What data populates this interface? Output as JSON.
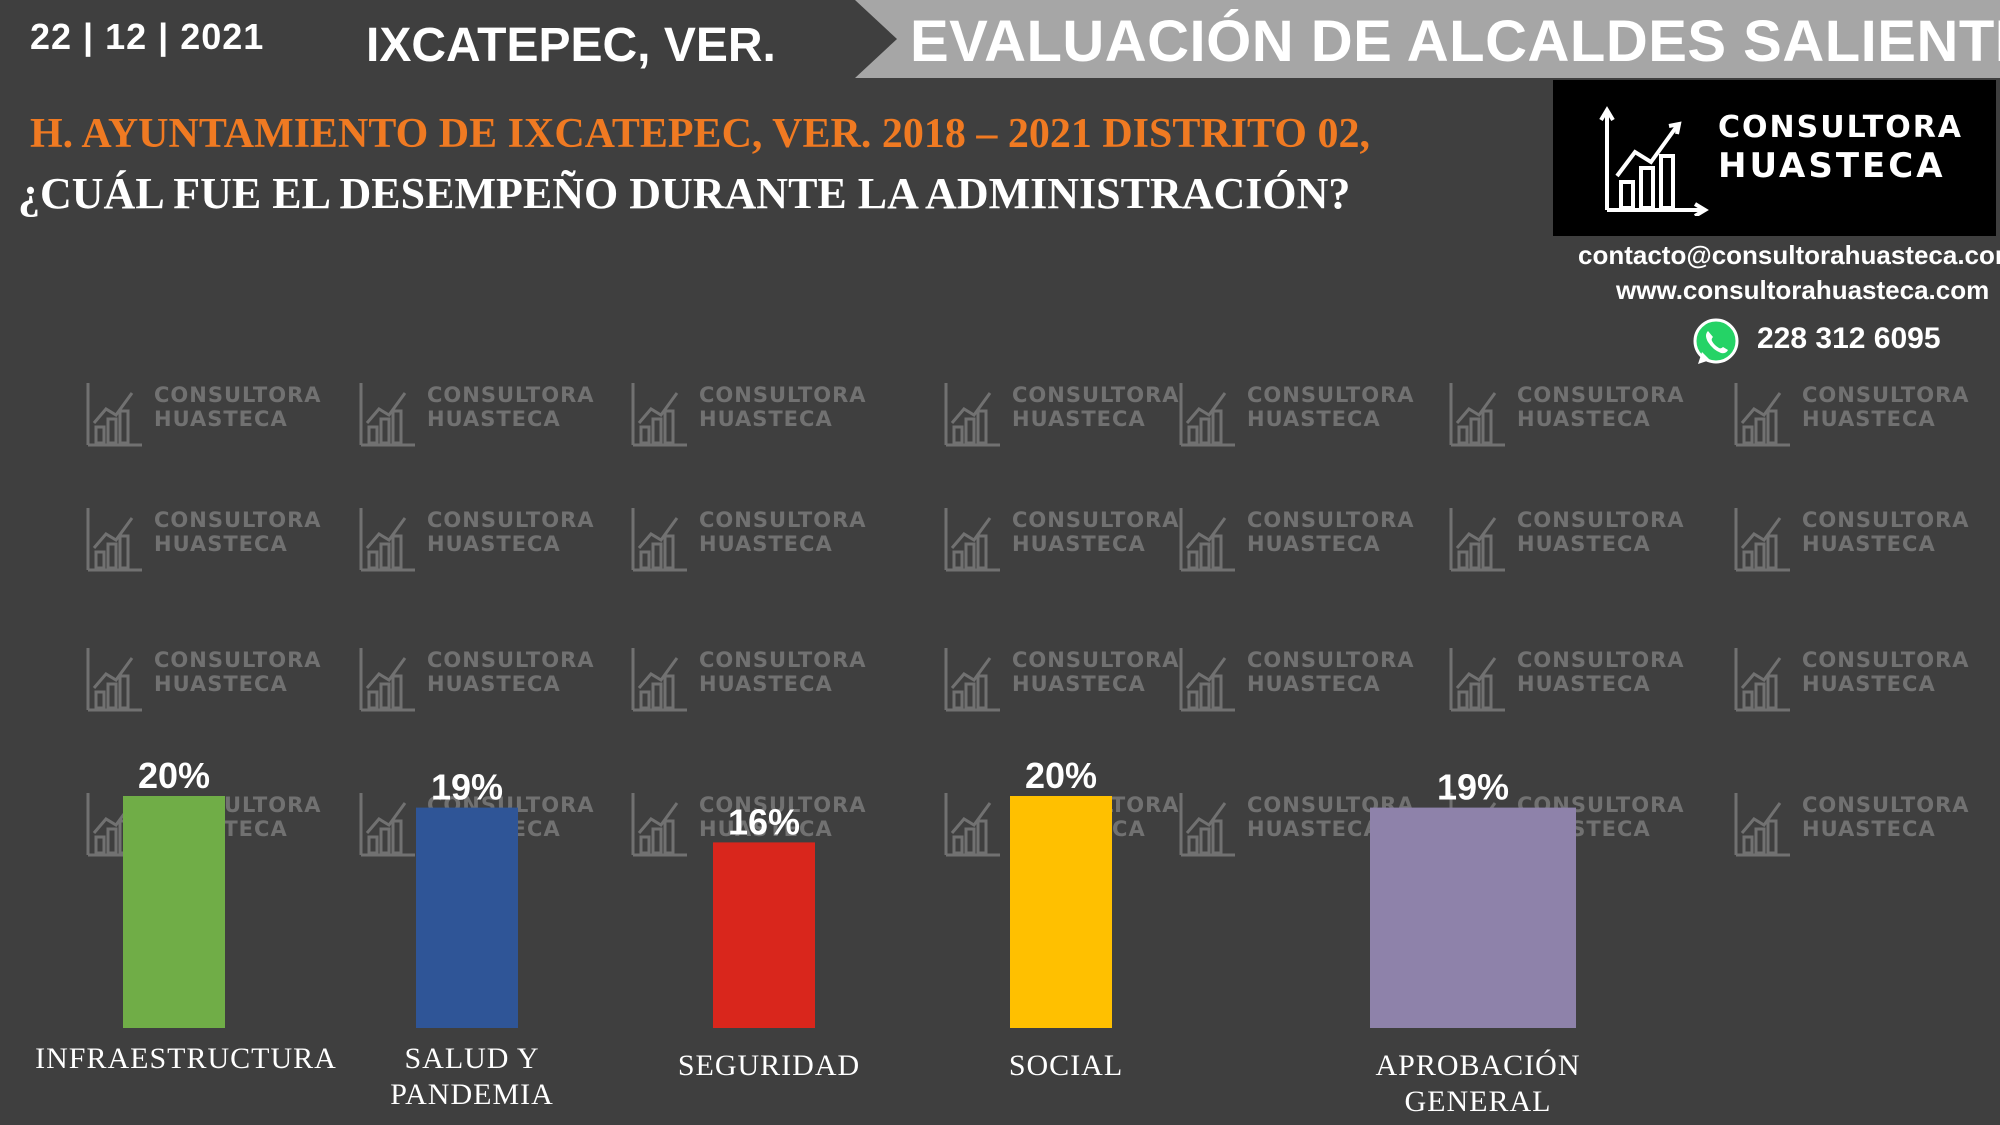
{
  "header": {
    "date": "22 | 12 | 2021",
    "town": "IXCATEPEC, VER.",
    "banner": "EVALUACIÓN DE ALCALDES SALIENTES"
  },
  "subtitle": "H. AYUNTAMIENTO DE IXCATEPEC, VER. 2018 – 2021 DISTRITO 02,",
  "question": "¿CUÁL FUE EL DESEMPEÑO DURANTE LA ADMINISTRACIÓN?",
  "brand": {
    "line1": "CONSULTORA",
    "line2": "HUASTECA",
    "email": "contacto@consultorahuasteca.com",
    "website": "www.consultorahuasteca.com",
    "phone": "228 312 6095",
    "phone_icon": "whatsapp-icon"
  },
  "colors": {
    "background": "#3f3f3f",
    "banner": "#a6a6a6",
    "subtitle": "#f07a22"
  },
  "chart_data": {
    "type": "bar",
    "categories": [
      [
        "INFRAESTRUCTURA"
      ],
      [
        "SALUD Y",
        "PANDEMIA"
      ],
      [
        "SEGURIDAD"
      ],
      [
        "SOCIAL"
      ],
      [
        "APROBACIÓN",
        "GENERAL"
      ]
    ],
    "values": [
      20,
      19,
      16,
      20,
      19
    ],
    "labels": [
      "20%",
      "19%",
      "16%",
      "20%",
      "19%"
    ],
    "colors": [
      "#70ad47",
      "#2f5597",
      "#d9261c",
      "#ffc000",
      "#8e82aa"
    ],
    "ylim": [
      0,
      20
    ]
  }
}
